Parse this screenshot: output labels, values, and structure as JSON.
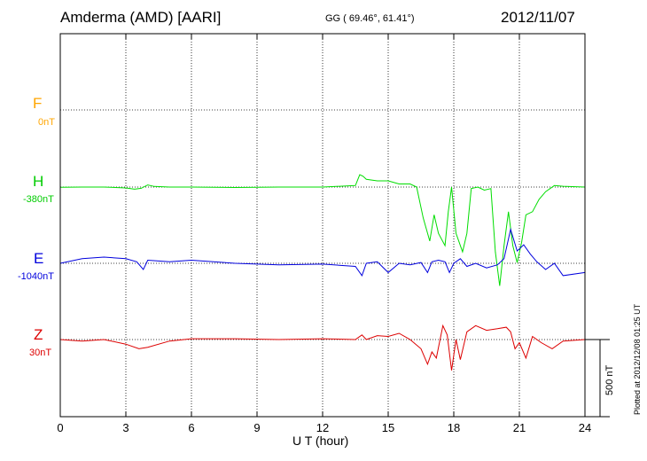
{
  "header": {
    "station": "Amderma (AMD)  [AARI]",
    "coords": "GG ( 69.46°,  61.41°)",
    "date": "2012/11/07"
  },
  "footer": {
    "plotted": "Plotted at 2012/12/08 01:25 UT",
    "scale_label": "500 nT"
  },
  "chart_data": {
    "type": "line",
    "title": "Amderma (AMD)  [AARI]",
    "xlabel": "U T (hour)",
    "xlim": [
      0,
      24
    ],
    "x_ticks": [
      "0",
      "3",
      "6",
      "9",
      "12",
      "15",
      "18",
      "21",
      "24"
    ],
    "grid": true,
    "scale_bar_nT": 500,
    "series": [
      {
        "name": "F",
        "baseline": "0nT",
        "color": "#ffa500",
        "no_data": true,
        "x": [],
        "y": []
      },
      {
        "name": "H",
        "baseline": "-380nT",
        "color": "#00dd00",
        "x": [
          0,
          1,
          2,
          3,
          3.4,
          3.7,
          4,
          4.3,
          5,
          6,
          8,
          10,
          12,
          13.5,
          13.7,
          13.85,
          14,
          14.5,
          15,
          15.5,
          16,
          16.3,
          16.6,
          16.9,
          17.1,
          17.3,
          17.6,
          17.75,
          17.9,
          18.1,
          18.4,
          18.6,
          18.8,
          19.1,
          19.4,
          19.7,
          19.9,
          20.1,
          20.3,
          20.5,
          20.7,
          20.9,
          21.1,
          21.3,
          21.6,
          21.9,
          22.2,
          22.6,
          23,
          24
        ],
        "y": [
          -1,
          0,
          0,
          -6,
          -14,
          -8,
          14,
          4,
          0,
          0,
          -3,
          0,
          0,
          10,
          80,
          70,
          50,
          40,
          40,
          20,
          20,
          0,
          -200,
          -350,
          -180,
          -300,
          -380,
          -160,
          0,
          -300,
          -420,
          -300,
          -10,
          0,
          -20,
          -10,
          -420,
          -640,
          -380,
          -160,
          -380,
          -490,
          -360,
          -180,
          -160,
          -80,
          -30,
          10,
          5,
          0
        ]
      },
      {
        "name": "E",
        "baseline": "-1040nT",
        "color": "#0000dd",
        "x": [
          0,
          1,
          2,
          3,
          3.5,
          3.8,
          4,
          5,
          6,
          8,
          10,
          12,
          13.5,
          13.8,
          14,
          14.5,
          15,
          15.5,
          16,
          16.5,
          16.8,
          17,
          17.3,
          17.6,
          17.8,
          18,
          18.3,
          18.6,
          19,
          19.5,
          20,
          20.3,
          20.6,
          20.9,
          21.2,
          21.5,
          21.8,
          22.2,
          22.6,
          23,
          24
        ],
        "y": [
          0,
          30,
          40,
          30,
          10,
          -40,
          20,
          10,
          20,
          0,
          -10,
          -5,
          -20,
          -80,
          0,
          10,
          -60,
          0,
          -10,
          5,
          -60,
          10,
          20,
          10,
          -60,
          0,
          30,
          -20,
          0,
          -30,
          -10,
          30,
          220,
          80,
          120,
          60,
          10,
          -40,
          0,
          -80,
          -60
        ]
      },
      {
        "name": "Z",
        "baseline": "30nT",
        "color": "#dd0000",
        "x": [
          0,
          1,
          2,
          3,
          3.6,
          4,
          5,
          6,
          8,
          10,
          12,
          13.5,
          13.8,
          14,
          14.5,
          15,
          15.5,
          16,
          16.5,
          16.8,
          17,
          17.2,
          17.5,
          17.7,
          17.9,
          18.1,
          18.3,
          18.6,
          19,
          19.5,
          20,
          20.4,
          20.6,
          20.8,
          21,
          21.3,
          21.6,
          22,
          22.5,
          23,
          24
        ],
        "y": [
          0,
          -10,
          0,
          -30,
          -60,
          -50,
          -10,
          5,
          5,
          0,
          5,
          0,
          30,
          0,
          25,
          20,
          40,
          0,
          -60,
          -160,
          -80,
          -120,
          90,
          30,
          -200,
          0,
          -130,
          50,
          90,
          60,
          70,
          80,
          50,
          -60,
          -20,
          -120,
          20,
          -20,
          -60,
          -10,
          0
        ]
      }
    ]
  }
}
